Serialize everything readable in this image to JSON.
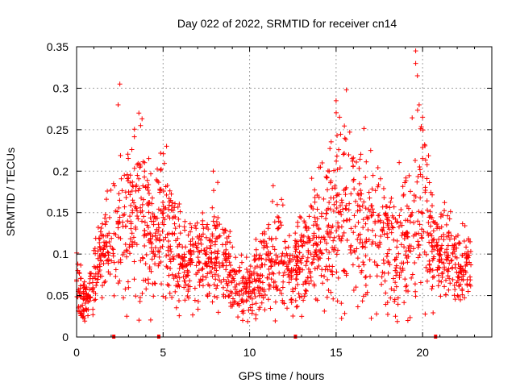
{
  "chart_data": {
    "type": "scatter",
    "title": "Day 022 of 2022, SRMTID for receiver cn14",
    "xlabel": "GPS time / hours",
    "ylabel": "SRMTID / TECUs",
    "xlim": [
      0,
      24
    ],
    "ylim": [
      0,
      0.35
    ],
    "x_ticks": [
      "0",
      "5",
      "10",
      "15",
      "20"
    ],
    "x_tick_values": [
      0,
      5,
      10,
      15,
      20
    ],
    "y_ticks": [
      "0",
      "0.05",
      "0.1",
      "0.15",
      "0.2",
      "0.25",
      "0.3",
      "0.35"
    ],
    "y_tick_values": [
      0,
      0.05,
      0.1,
      0.15,
      0.2,
      0.25,
      0.3,
      0.35
    ],
    "grid": true,
    "marker": "+",
    "series": [
      {
        "name": "SRMTID",
        "color": "#ff0000",
        "trend_x": [
          0,
          0.3,
          0.6,
          1.0,
          1.5,
          2.0,
          2.5,
          3.0,
          3.5,
          4.0,
          4.5,
          5.0,
          5.5,
          6.0,
          6.5,
          7.0,
          7.5,
          8.0,
          8.5,
          9.0,
          9.5,
          10.0,
          10.5,
          11.0,
          11.5,
          12.0,
          12.5,
          13.0,
          13.5,
          14.0,
          14.5,
          15.0,
          15.5,
          16.0,
          16.5,
          17.0,
          17.5,
          18.0,
          18.5,
          19.0,
          19.5,
          20.0,
          20.5,
          21.0,
          21.5,
          22.0,
          22.5,
          22.8
        ],
        "trend_y": [
          0.07,
          0.05,
          0.04,
          0.07,
          0.1,
          0.12,
          0.13,
          0.14,
          0.15,
          0.13,
          0.12,
          0.14,
          0.12,
          0.09,
          0.09,
          0.1,
          0.1,
          0.1,
          0.09,
          0.07,
          0.06,
          0.06,
          0.07,
          0.09,
          0.1,
          0.09,
          0.08,
          0.09,
          0.1,
          0.12,
          0.13,
          0.14,
          0.15,
          0.15,
          0.13,
          0.13,
          0.12,
          0.11,
          0.1,
          0.12,
          0.14,
          0.16,
          0.12,
          0.1,
          0.1,
          0.09,
          0.09,
          0.09
        ],
        "spread_y": [
          0.02,
          0.02,
          0.015,
          0.025,
          0.03,
          0.04,
          0.05,
          0.06,
          0.06,
          0.05,
          0.04,
          0.05,
          0.04,
          0.03,
          0.03,
          0.03,
          0.03,
          0.035,
          0.03,
          0.025,
          0.02,
          0.02,
          0.025,
          0.03,
          0.035,
          0.03,
          0.03,
          0.03,
          0.035,
          0.04,
          0.05,
          0.06,
          0.06,
          0.05,
          0.05,
          0.045,
          0.045,
          0.04,
          0.04,
          0.05,
          0.06,
          0.06,
          0.04,
          0.035,
          0.03,
          0.03,
          0.03,
          0.03
        ],
        "peaks": [
          {
            "x": 2.5,
            "y": 0.305
          },
          {
            "x": 2.4,
            "y": 0.28
          },
          {
            "x": 3.6,
            "y": 0.27
          },
          {
            "x": 3.7,
            "y": 0.255
          },
          {
            "x": 5.2,
            "y": 0.23
          },
          {
            "x": 7.9,
            "y": 0.2
          },
          {
            "x": 15.0,
            "y": 0.285
          },
          {
            "x": 15.2,
            "y": 0.265
          },
          {
            "x": 17.0,
            "y": 0.225
          },
          {
            "x": 19.6,
            "y": 0.345
          },
          {
            "x": 19.6,
            "y": 0.33
          },
          {
            "x": 19.7,
            "y": 0.315
          },
          {
            "x": 19.8,
            "y": 0.28
          },
          {
            "x": 20.0,
            "y": 0.265
          },
          {
            "x": 0.4,
            "y": 0.025
          },
          {
            "x": 9.6,
            "y": 0.02
          },
          {
            "x": 2.9,
            "y": 0.025
          }
        ],
        "zero_marks": [
          2.15,
          4.75,
          12.65,
          20.75
        ],
        "n_points": 1900
      }
    ]
  }
}
